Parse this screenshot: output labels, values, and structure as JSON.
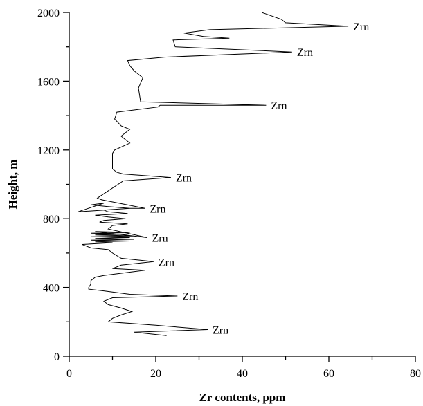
{
  "chart_data": {
    "type": "line",
    "orientation": "vertical-profile",
    "title": "",
    "xlabel": "Zr contents, ppm",
    "ylabel": "Height, m",
    "xlim": [
      0,
      80
    ],
    "ylim": [
      0,
      2000
    ],
    "x_ticks": [
      "0",
      "20",
      "40",
      "60",
      "80"
    ],
    "y_ticks": [
      "0",
      "400",
      "800",
      "1200",
      "1600",
      "2000"
    ],
    "grid": false,
    "legend": "none",
    "line_color": "#000000",
    "series": [
      {
        "points": [
          [
            22.5,
            120
          ],
          [
            15.0,
            140
          ],
          [
            32.0,
            155
          ],
          [
            20.0,
            180
          ],
          [
            9.0,
            200
          ],
          [
            10.0,
            220
          ],
          [
            12.0,
            240
          ],
          [
            14.5,
            260
          ],
          [
            12.0,
            280
          ],
          [
            9.0,
            300
          ],
          [
            8.0,
            320
          ],
          [
            10.0,
            340
          ],
          [
            25.0,
            350
          ],
          [
            14.0,
            360
          ],
          [
            8.0,
            380
          ],
          [
            4.5,
            390
          ],
          [
            4.5,
            400
          ],
          [
            5.0,
            420
          ],
          [
            5.0,
            440
          ],
          [
            6.0,
            460
          ],
          [
            8.0,
            470
          ],
          [
            17.5,
            500
          ],
          [
            10.0,
            510
          ],
          [
            12.0,
            530
          ],
          [
            19.5,
            550
          ],
          [
            12.0,
            570
          ],
          [
            10.0,
            600
          ],
          [
            9.0,
            620
          ],
          [
            5.0,
            630
          ],
          [
            3.0,
            650
          ],
          [
            10.0,
            660
          ],
          [
            6.0,
            665
          ],
          [
            14.0,
            670
          ],
          [
            5.0,
            675
          ],
          [
            15.0,
            680
          ],
          [
            6.0,
            685
          ],
          [
            14.0,
            690
          ],
          [
            5.0,
            695
          ],
          [
            15.0,
            700
          ],
          [
            6.0,
            705
          ],
          [
            13.5,
            710
          ],
          [
            5.0,
            715
          ],
          [
            14.0,
            720
          ],
          [
            6.0,
            725
          ],
          [
            18.0,
            690
          ],
          [
            9.0,
            740
          ],
          [
            10.0,
            760
          ],
          [
            13.5,
            770
          ],
          [
            7.0,
            780
          ],
          [
            8.0,
            790
          ],
          [
            13.0,
            800
          ],
          [
            9.0,
            810
          ],
          [
            6.0,
            820
          ],
          [
            13.5,
            830
          ],
          [
            9.0,
            840
          ],
          [
            8.0,
            850
          ],
          [
            14.0,
            860
          ],
          [
            9.0,
            870
          ],
          [
            5.0,
            880
          ],
          [
            8.0,
            890
          ],
          [
            2.0,
            840
          ],
          [
            14.0,
            860
          ],
          [
            17.5,
            860
          ],
          [
            7.5,
            910
          ],
          [
            6.5,
            920
          ],
          [
            12.5,
            1020
          ],
          [
            23.5,
            1040
          ],
          [
            12.5,
            1060
          ],
          [
            11.0,
            1070
          ],
          [
            10.0,
            1090
          ],
          [
            10.0,
            1180
          ],
          [
            10.5,
            1200
          ],
          [
            14.0,
            1240
          ],
          [
            12.0,
            1280
          ],
          [
            14.0,
            1320
          ],
          [
            12.0,
            1340
          ],
          [
            10.5,
            1380
          ],
          [
            11.0,
            1420
          ],
          [
            20.5,
            1450
          ],
          [
            21.0,
            1460
          ],
          [
            45.5,
            1460
          ],
          [
            16.5,
            1480
          ],
          [
            16.0,
            1560
          ],
          [
            17.0,
            1620
          ],
          [
            15.0,
            1660
          ],
          [
            14.0,
            1690
          ],
          [
            13.5,
            1720
          ],
          [
            22.0,
            1740
          ],
          [
            51.5,
            1770
          ],
          [
            24.5,
            1800
          ],
          [
            24.0,
            1840
          ],
          [
            37.0,
            1850
          ],
          [
            31.0,
            1860
          ],
          [
            26.5,
            1880
          ],
          [
            32.5,
            1900
          ],
          [
            64.5,
            1920
          ],
          [
            50.0,
            1940
          ],
          [
            49.0,
            1960
          ],
          [
            44.5,
            2000
          ]
        ]
      }
    ],
    "annotations": [
      {
        "text": "Zrn",
        "x": 64.5,
        "y": 1920
      },
      {
        "text": "Zrn",
        "x": 51.5,
        "y": 1770
      },
      {
        "text": "Zrn",
        "x": 45.5,
        "y": 1460
      },
      {
        "text": "Zrn",
        "x": 23.5,
        "y": 1040
      },
      {
        "text": "Zrn",
        "x": 17.5,
        "y": 860
      },
      {
        "text": "Zrn",
        "x": 18.0,
        "y": 690
      },
      {
        "text": "Zrn",
        "x": 19.5,
        "y": 550
      },
      {
        "text": "Zrn",
        "x": 25.0,
        "y": 350
      },
      {
        "text": "Zrn",
        "x": 32.0,
        "y": 155
      }
    ]
  }
}
